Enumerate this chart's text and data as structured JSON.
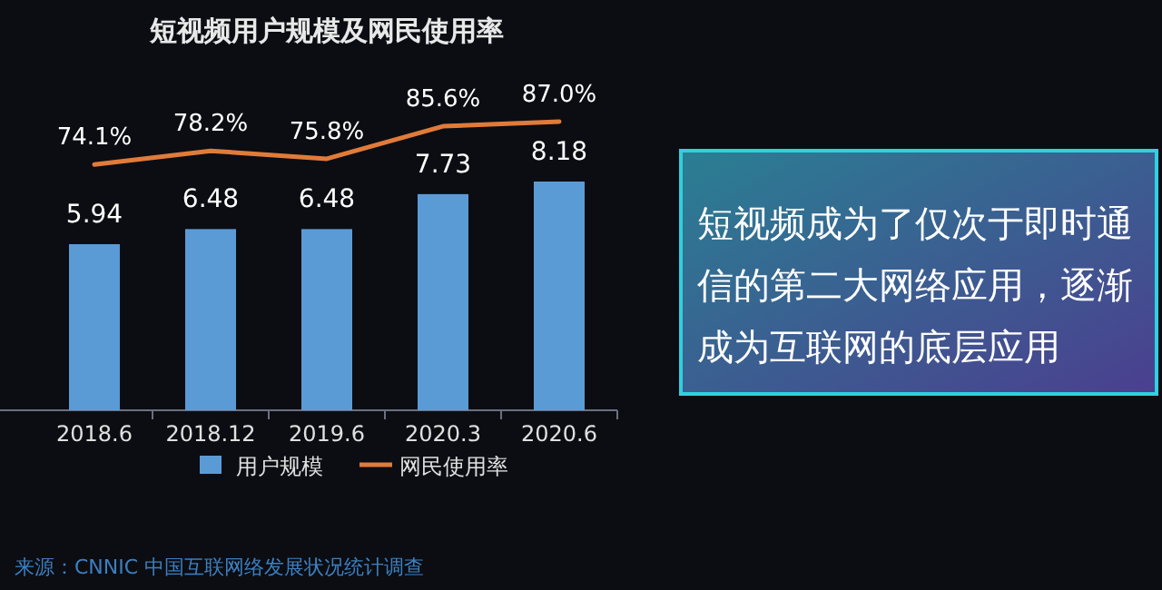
{
  "chart_data": [
    {
      "type": "bar",
      "categories": [
        "2018.6",
        "2018.12",
        "2019.6",
        "2020.3",
        "2020.6"
      ],
      "series": [
        {
          "name": "用户规模",
          "color": "#5b9bd5",
          "values": [
            5.94,
            6.48,
            6.48,
            7.73,
            8.18
          ]
        }
      ],
      "data_labels": true,
      "tick_labels": "x",
      "legend": "bottom",
      "annotations": [
        "短视频成为了仅次于即时通信的第二大网络应用，逐渐成为互联网的底层应用",
        "来源：CNNIC 中国互联网络发展状况统计调查"
      ]
    },
    {
      "type": "line",
      "title": "短视频用户规模及网民使用率",
      "categories": [
        "2018.6",
        "2018.12",
        "2019.6",
        "2020.3",
        "2020.6"
      ],
      "series": [
        {
          "name": "网民使用率",
          "color": "#e07b39",
          "values": [
            74.1,
            78.2,
            75.8,
            85.6,
            87.0
          ],
          "value_labels": [
            "74.1%",
            "78.2%",
            "75.8%",
            "85.6%",
            "87.0%"
          ]
        }
      ],
      "tick_labels": false,
      "legend": "bottom"
    }
  ]
}
